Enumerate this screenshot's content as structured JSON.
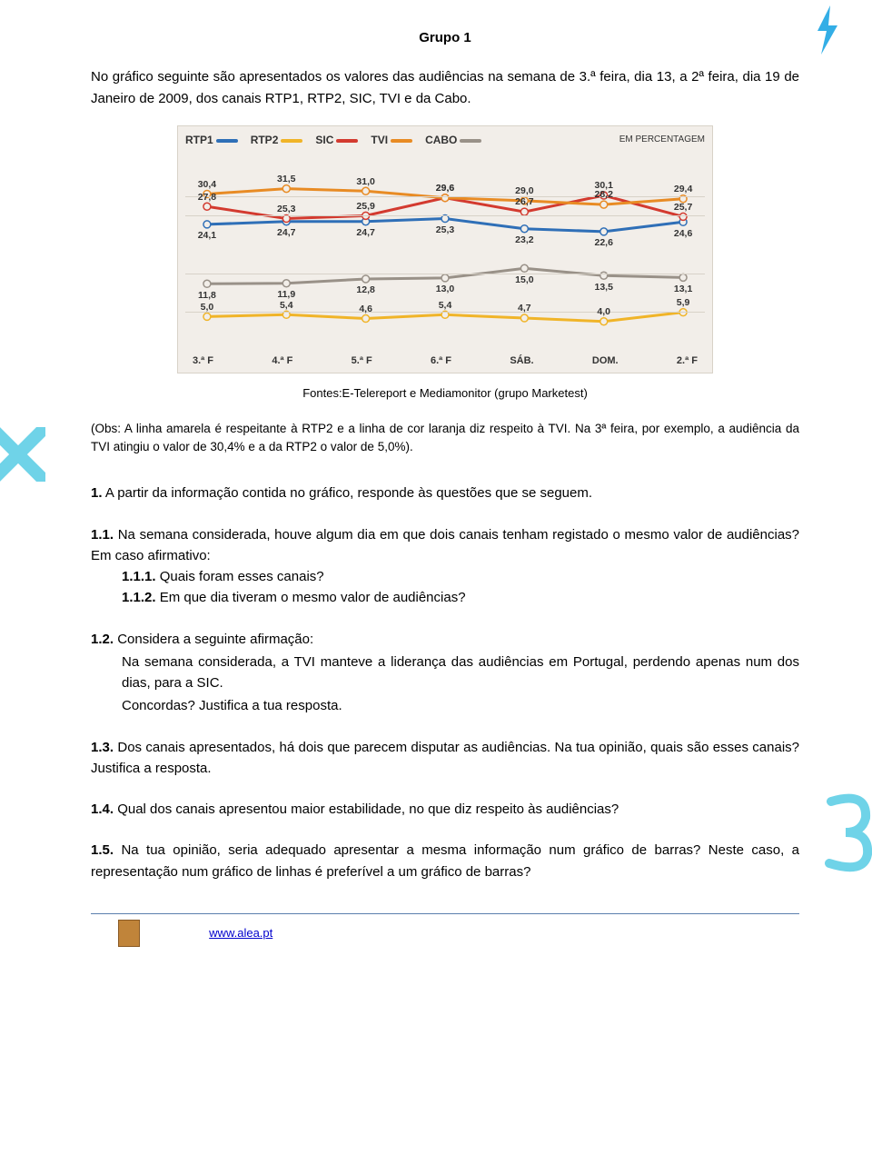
{
  "title": "Grupo 1",
  "intro": "No gráfico seguinte são apresentados os valores das audiências na semana de 3.ª feira, dia 13, a 2ª feira, dia 19 de Janeiro de 2009, dos canais RTP1, RTP2, SIC, TVI e da Cabo.",
  "chart": {
    "type": "line",
    "background": "#f2eee9",
    "grid_color": "#d8d2c8",
    "categories": [
      "3.ª F",
      "4.ª F",
      "5.ª F",
      "6.ª F",
      "SÁB.",
      "DOM.",
      "2.ª F"
    ],
    "em_percent": "EM PERCENTAGEM",
    "ylim": [
      0,
      35
    ],
    "series": [
      {
        "name": "RTP1",
        "color": "#2f6fb7",
        "values": [
          24.1,
          24.7,
          24.7,
          25.3,
          23.2,
          22.6,
          24.6
        ],
        "labels": [
          "24,1",
          "24,7",
          "24,7",
          "25,3",
          "23,2",
          "22,6",
          "24,6"
        ]
      },
      {
        "name": "RTP2",
        "color": "#f0b428",
        "values": [
          5.0,
          5.4,
          4.6,
          5.4,
          4.7,
          4.0,
          5.9
        ],
        "labels": [
          "5,0",
          "5,4",
          "4,6",
          "5,4",
          "4,7",
          "4,0",
          "5,9"
        ]
      },
      {
        "name": "SIC",
        "color": "#d33a2f",
        "values": [
          27.8,
          25.3,
          25.9,
          29.6,
          26.7,
          30.1,
          25.7
        ],
        "labels": [
          "27,8",
          "25,3",
          "25,9",
          "29,6",
          "26,7",
          "30,1",
          "25,7"
        ]
      },
      {
        "name": "TVI",
        "color": "#e88b24",
        "values": [
          30.4,
          31.5,
          31.0,
          29.6,
          29.0,
          28.2,
          29.4
        ],
        "labels": [
          "30,4",
          "31,5",
          "31,0",
          "29,6",
          "29,0",
          "28,2",
          "29,4"
        ]
      },
      {
        "name": "CABO",
        "color": "#999188",
        "values": [
          11.8,
          11.9,
          12.8,
          13.0,
          15.0,
          13.5,
          13.1
        ],
        "labels": [
          "11,8",
          "11,9",
          "12,8",
          "13,0",
          "15,0",
          "13,5",
          "13,1"
        ]
      }
    ]
  },
  "source": "Fontes:E-Telereport e Mediamonitor (grupo Marketest)",
  "obs": "(Obs: A linha amarela é respeitante à RTP2 e a linha de cor laranja diz respeito à TVI. Na 3ª feira, por exemplo, a audiência da TVI atingiu o valor de 30,4% e a da RTP2 o valor de 5,0%).",
  "q1": {
    "n": "1.",
    "t": "A partir da informação contida no gráfico, responde às questões que se seguem."
  },
  "q11": {
    "n": "1.1.",
    "t": "Na semana considerada, houve algum dia em que dois canais tenham registado o mesmo valor de audiências? Em caso afirmativo:"
  },
  "q111": {
    "n": "1.1.1.",
    "t": "Quais foram esses canais?"
  },
  "q112": {
    "n": "1.1.2.",
    "t": "Em que dia tiveram o mesmo valor de audiências?"
  },
  "q12": {
    "n": "1.2.",
    "t": "Considera a seguinte afirmação:"
  },
  "q12b": "Na semana considerada, a TVI manteve a liderança das audiências em Portugal, perdendo apenas num dos dias, para a SIC.",
  "q12c": "Concordas? Justifica a tua resposta.",
  "q13": {
    "n": "1.3.",
    "t": "Dos canais apresentados, há dois que parecem disputar as audiências. Na tua opinião, quais são esses canais? Justifica a resposta."
  },
  "q14": {
    "n": "1.4.",
    "t": "Qual dos canais apresentou maior estabilidade, no que diz respeito às audiências?"
  },
  "q15": {
    "n": "1.5.",
    "t": "Na tua opinião, seria adequado apresentar a mesma informação num gráfico de barras? Neste caso, a representação num gráfico de linhas é preferível a um gráfico de barras?"
  },
  "footer_link": "www.alea.pt",
  "bolt_color": "#33aee6",
  "deco_color": "#6fd3e8"
}
